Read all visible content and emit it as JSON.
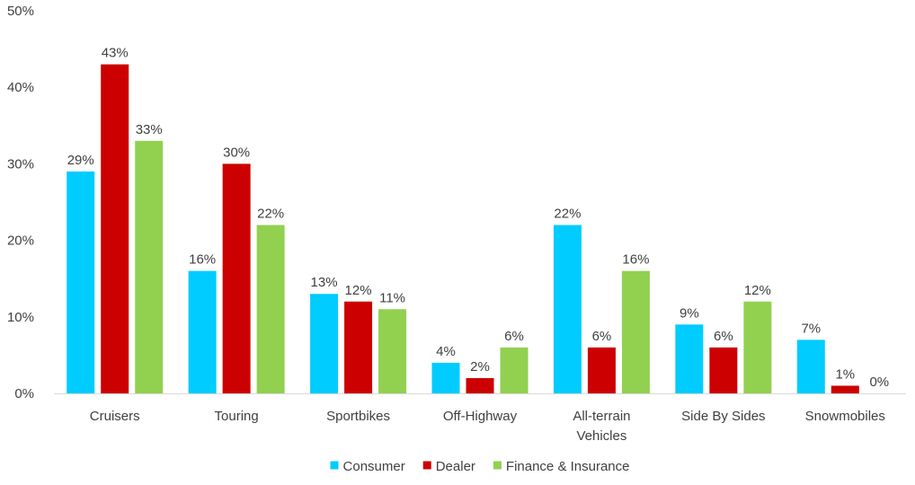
{
  "chart_data": {
    "type": "bar",
    "title": "",
    "xlabel": "",
    "ylabel": "",
    "ylim": [
      0,
      50
    ],
    "yticks": [
      "0%",
      "10%",
      "20%",
      "30%",
      "40%",
      "50%"
    ],
    "ytick_values": [
      0,
      10,
      20,
      30,
      40,
      50
    ],
    "grid": false,
    "legend_position": "bottom",
    "categories": [
      [
        "Cruisers"
      ],
      [
        "Touring"
      ],
      [
        "Sportbikes"
      ],
      [
        "Off-Highway"
      ],
      [
        "All-terrain",
        "Vehicles"
      ],
      [
        "Side By Sides"
      ],
      [
        "Snowmobiles"
      ]
    ],
    "series": [
      {
        "name": "Consumer",
        "color": "#00CCFF",
        "values": [
          29,
          16,
          13,
          4,
          22,
          9,
          7
        ],
        "labels": [
          "29%",
          "16%",
          "13%",
          "4%",
          "22%",
          "9%",
          "7%"
        ]
      },
      {
        "name": "Dealer",
        "color": "#CC0000",
        "values": [
          43,
          30,
          12,
          2,
          6,
          6,
          1
        ],
        "labels": [
          "43%",
          "30%",
          "12%",
          "2%",
          "6%",
          "6%",
          "1%"
        ]
      },
      {
        "name": "Finance & Insurance",
        "color": "#92D050",
        "values": [
          33,
          22,
          11,
          6,
          16,
          12,
          0
        ],
        "labels": [
          "33%",
          "22%",
          "11%",
          "6%",
          "16%",
          "12%",
          "0%"
        ]
      }
    ]
  }
}
